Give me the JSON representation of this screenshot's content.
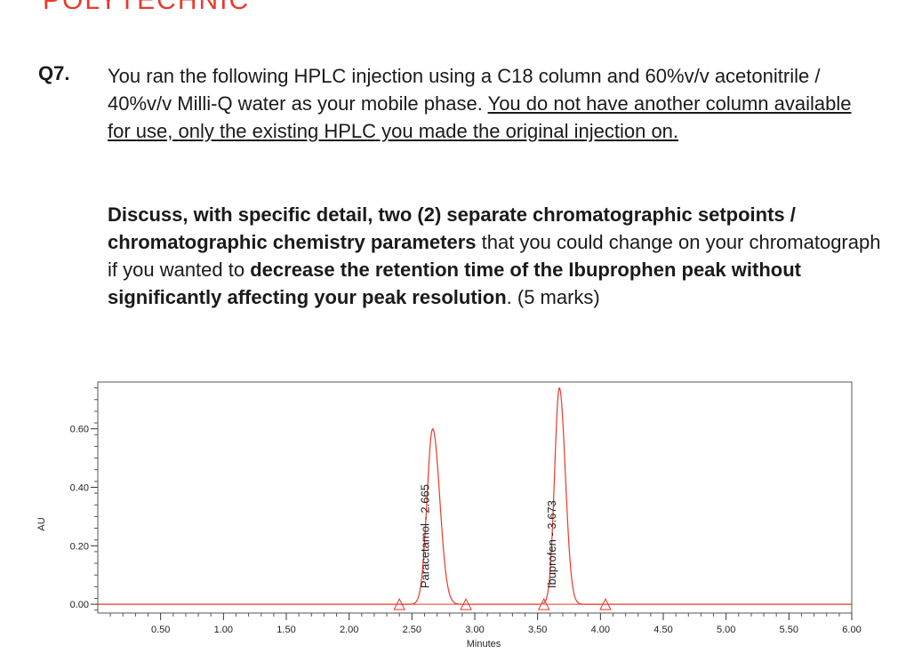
{
  "header": {
    "brand": "POLYTECHNIC"
  },
  "question": {
    "number": "Q7",
    "number_suffix": ".",
    "intro": "You ran the following HPLC injection using a C18 column and  60%v/v acetonitrile / 40%v/v Milli-Q water as your mobile phase.",
    "underlined": "You do not have another column available for use, only the existing HPLC you made the original injection on."
  },
  "task": {
    "p1": "Discuss, with specific detail, two (2) separate chromatographic setpoints / chromatographic chemistry parameters",
    "p2": " that you could change on your chromatograph if you wanted to ",
    "p3": "decrease the retention time of the Ibuprophen peak without significantly affecting your peak resolution",
    "p4": ". (5 marks)"
  },
  "chart_data": {
    "type": "line",
    "xlabel": "Minutes",
    "ylabel": "AU",
    "xlim": [
      0,
      6.0
    ],
    "ylim": [
      -0.03,
      0.76
    ],
    "x_ticks": [
      "0.50",
      "1.00",
      "1.50",
      "2.00",
      "2.50",
      "3.00",
      "3.50",
      "4.00",
      "4.50",
      "5.00",
      "5.50",
      "6.00"
    ],
    "y_ticks": [
      "0.00",
      "0.20",
      "0.40",
      "0.60"
    ],
    "line_color": "#e8392a",
    "peaks": [
      {
        "name": "Paracetamol",
        "rt": 2.665,
        "height": 0.6,
        "label": "Paracetamol - 2.665",
        "start": 2.4,
        "end": 2.93
      },
      {
        "name": "Ibuprofen",
        "rt": 3.673,
        "height": 0.74,
        "label": "Ibuprofen - 3.673",
        "start": 3.55,
        "end": 4.04
      }
    ]
  }
}
